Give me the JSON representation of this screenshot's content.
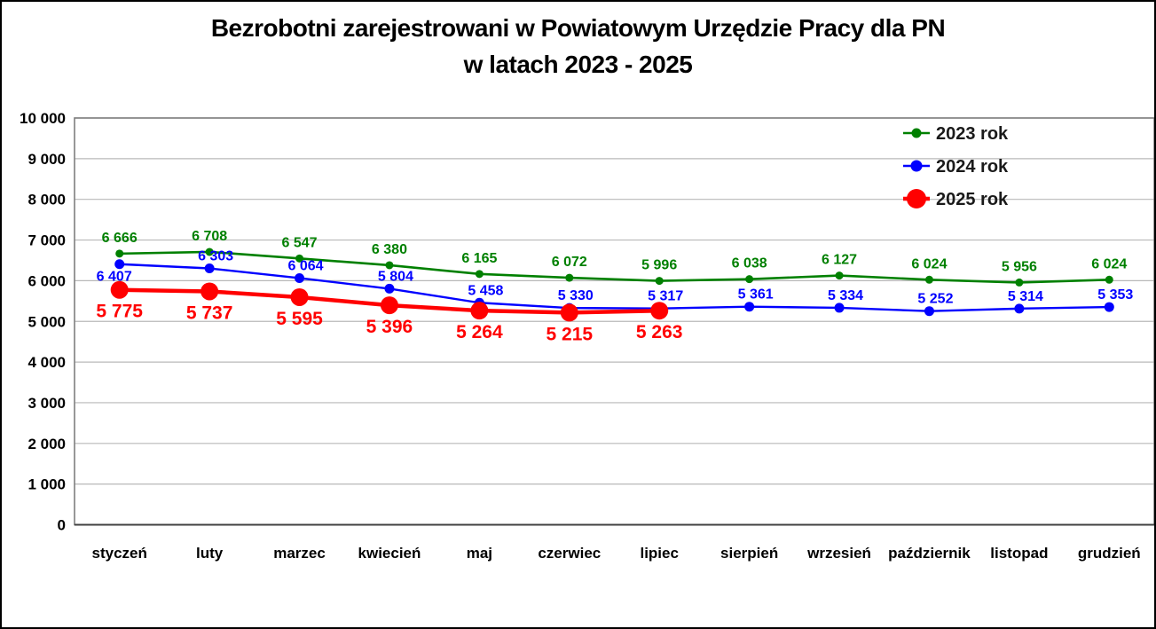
{
  "title": {
    "line1": "Bezrobotni zarejestrowani w Powiatowym Urzędzie Pracy dla PN",
    "line2": "w latach 2023 - 2025"
  },
  "chart_data": {
    "type": "line",
    "categories": [
      "styczeń",
      "luty",
      "marzec",
      "kwiecień",
      "maj",
      "czerwiec",
      "lipiec",
      "sierpień",
      "wrzesień",
      "październik",
      "listopad",
      "grudzień"
    ],
    "series": [
      {
        "name": "2023 rok",
        "color": "#008000",
        "values": [
          6666,
          6708,
          6547,
          6380,
          6165,
          6072,
          5996,
          6038,
          6127,
          6024,
          5956,
          6024
        ],
        "line_width": 2.6,
        "marker_radius": 4.5,
        "label_position": "above",
        "label_offset": 13,
        "label_dx": 0,
        "label_font": 16
      },
      {
        "name": "2024 rok",
        "color": "#0000ff",
        "values": [
          6407,
          6303,
          6064,
          5804,
          5458,
          5330,
          5317,
          5361,
          5334,
          5252,
          5314,
          5353
        ],
        "line_width": 2.4,
        "marker_radius": 5.5,
        "label_position": "above",
        "label_offset": 9,
        "label_dx": 7,
        "label_font": 16,
        "label_overrides": {
          "0": {
            "position": "below",
            "offset": 19,
            "dx": -6
          }
        }
      },
      {
        "name": "2025 rok",
        "color": "#ff0000",
        "values": [
          5775,
          5737,
          5595,
          5396,
          5264,
          5215,
          5263,
          null,
          null,
          null,
          null,
          null
        ],
        "line_width": 4.5,
        "marker_radius": 10,
        "label_position": "below",
        "label_offset": 31,
        "label_dx": 0,
        "label_font": 21
      }
    ],
    "ylim": [
      0,
      10000
    ],
    "ytick_step": 1000,
    "grid": "horizontal",
    "legend_position": "top-right",
    "thousands_separator": " "
  },
  "style_colors": {
    "gridline": "#b8b8b8",
    "plot_border": "#7f7f7f",
    "axis_line": "#404040",
    "axis_text": "#000000",
    "legend_text": "#1a1a1a"
  }
}
